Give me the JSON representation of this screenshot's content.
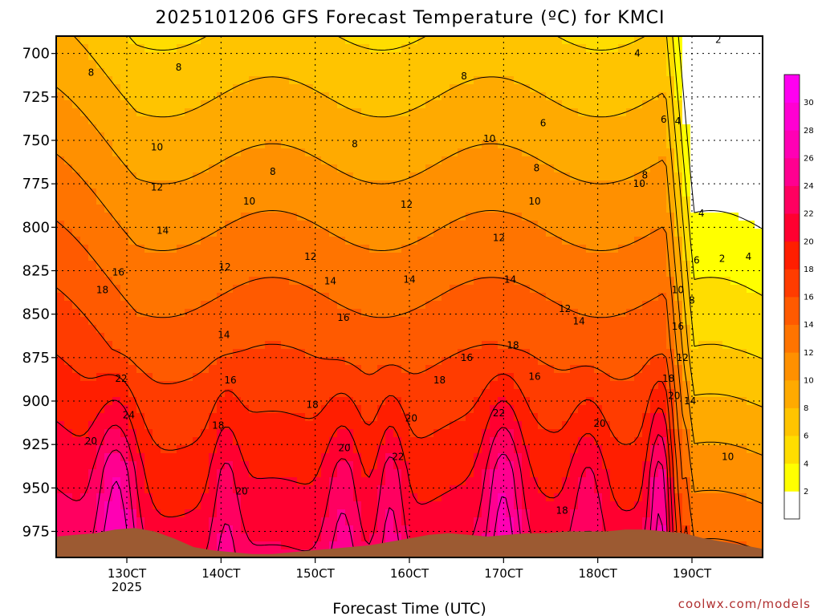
{
  "chart_data": {
    "type": "heatmap",
    "title": "2025101206 GFS Forecast Temperature (ºC) for KMCI",
    "xlabel": "Forecast Time (UTC)",
    "ylabel": "",
    "credit": "coolwx.com/models",
    "x_start_day": 12.25,
    "x_end_day": 19.75,
    "xlim_day": [
      12.25,
      19.75
    ],
    "x_ticks": [
      {
        "day": 13,
        "label": "130CT"
      },
      {
        "day": 14,
        "label": "140CT"
      },
      {
        "day": 15,
        "label": "150CT"
      },
      {
        "day": 16,
        "label": "160CT"
      },
      {
        "day": 17,
        "label": "170CT"
      },
      {
        "day": 18,
        "label": "180CT"
      },
      {
        "day": 19,
        "label": "190CT"
      }
    ],
    "year_label": "2025",
    "ylim_hpa": [
      990,
      690
    ],
    "y_ticks": [
      700,
      725,
      750,
      775,
      800,
      825,
      850,
      875,
      900,
      925,
      950,
      975
    ],
    "colorbar": {
      "levels": [
        0,
        2,
        4,
        6,
        8,
        10,
        12,
        14,
        16,
        18,
        20,
        22,
        24,
        26,
        28,
        30,
        32
      ],
      "labels": [
        2,
        4,
        6,
        8,
        10,
        12,
        14,
        16,
        18,
        20,
        22,
        24,
        26,
        28,
        30
      ],
      "colors": [
        "#ffffff",
        "#ffff00",
        "#ffdd00",
        "#ffc400",
        "#ffaa00",
        "#ff9000",
        "#ff7400",
        "#ff5a00",
        "#ff3c00",
        "#ff1e00",
        "#ff0030",
        "#ff0060",
        "#ff0090",
        "#ff00b4",
        "#ff00d2",
        "#ff00f0"
      ]
    },
    "surface_color": "#9c5a32",
    "surface_hpa": [
      978,
      977,
      976,
      974,
      973,
      975,
      979,
      984,
      986,
      987,
      988,
      988,
      987,
      986,
      985,
      984,
      983,
      981,
      979,
      977,
      976,
      977,
      978,
      977,
      976,
      976,
      975,
      975,
      975,
      974,
      974,
      975,
      976,
      979,
      981,
      983,
      985
    ],
    "contour_labels": [
      {
        "day": 12.62,
        "hpa": 711,
        "value": "8"
      },
      {
        "day": 13.55,
        "hpa": 708,
        "value": "8"
      },
      {
        "day": 16.58,
        "hpa": 713,
        "value": "8"
      },
      {
        "day": 18.42,
        "hpa": 700,
        "value": "4"
      },
      {
        "day": 19.28,
        "hpa": 692,
        "value": "2"
      },
      {
        "day": 17.42,
        "hpa": 740,
        "value": "6"
      },
      {
        "day": 18.7,
        "hpa": 738,
        "value": "6"
      },
      {
        "day": 18.85,
        "hpa": 739,
        "value": "4"
      },
      {
        "day": 13.32,
        "hpa": 754,
        "value": "10"
      },
      {
        "day": 15.42,
        "hpa": 752,
        "value": "8"
      },
      {
        "day": 16.85,
        "hpa": 749,
        "value": "10"
      },
      {
        "day": 14.55,
        "hpa": 768,
        "value": "8"
      },
      {
        "day": 17.35,
        "hpa": 766,
        "value": "8"
      },
      {
        "day": 18.44,
        "hpa": 775,
        "value": "10"
      },
      {
        "day": 18.5,
        "hpa": 770,
        "value": "8"
      },
      {
        "day": 13.32,
        "hpa": 777,
        "value": "12"
      },
      {
        "day": 14.3,
        "hpa": 785,
        "value": "10"
      },
      {
        "day": 15.97,
        "hpa": 787,
        "value": "12"
      },
      {
        "day": 17.33,
        "hpa": 785,
        "value": "10"
      },
      {
        "day": 19.1,
        "hpa": 792,
        "value": "4"
      },
      {
        "day": 13.38,
        "hpa": 802,
        "value": "14"
      },
      {
        "day": 16.95,
        "hpa": 806,
        "value": "12"
      },
      {
        "day": 14.95,
        "hpa": 817,
        "value": "12"
      },
      {
        "day": 14.04,
        "hpa": 823,
        "value": "12"
      },
      {
        "day": 19.32,
        "hpa": 818,
        "value": "2"
      },
      {
        "day": 19.6,
        "hpa": 817,
        "value": "4"
      },
      {
        "day": 19.05,
        "hpa": 819,
        "value": "6"
      },
      {
        "day": 12.91,
        "hpa": 826,
        "value": "16"
      },
      {
        "day": 15.16,
        "hpa": 831,
        "value": "14"
      },
      {
        "day": 16.0,
        "hpa": 830,
        "value": "14"
      },
      {
        "day": 17.07,
        "hpa": 830,
        "value": "14"
      },
      {
        "day": 12.74,
        "hpa": 836,
        "value": "18"
      },
      {
        "day": 18.85,
        "hpa": 836,
        "value": "10"
      },
      {
        "day": 19.0,
        "hpa": 842,
        "value": "8"
      },
      {
        "day": 15.3,
        "hpa": 852,
        "value": "16"
      },
      {
        "day": 17.65,
        "hpa": 847,
        "value": "12"
      },
      {
        "day": 17.8,
        "hpa": 854,
        "value": "14"
      },
      {
        "day": 14.03,
        "hpa": 862,
        "value": "14"
      },
      {
        "day": 18.85,
        "hpa": 857,
        "value": "16"
      },
      {
        "day": 17.1,
        "hpa": 868,
        "value": "18"
      },
      {
        "day": 16.61,
        "hpa": 875,
        "value": "16"
      },
      {
        "day": 18.9,
        "hpa": 875,
        "value": "12"
      },
      {
        "day": 12.94,
        "hpa": 887,
        "value": "22"
      },
      {
        "day": 14.1,
        "hpa": 888,
        "value": "16"
      },
      {
        "day": 16.32,
        "hpa": 888,
        "value": "18"
      },
      {
        "day": 17.33,
        "hpa": 886,
        "value": "16"
      },
      {
        "day": 18.75,
        "hpa": 887,
        "value": "18"
      },
      {
        "day": 18.81,
        "hpa": 897,
        "value": "20"
      },
      {
        "day": 18.98,
        "hpa": 900,
        "value": "14"
      },
      {
        "day": 14.97,
        "hpa": 902,
        "value": "18"
      },
      {
        "day": 13.02,
        "hpa": 908,
        "value": "24"
      },
      {
        "day": 16.02,
        "hpa": 910,
        "value": "20"
      },
      {
        "day": 16.95,
        "hpa": 907,
        "value": "22"
      },
      {
        "day": 13.97,
        "hpa": 914,
        "value": "18"
      },
      {
        "day": 18.02,
        "hpa": 913,
        "value": "20"
      },
      {
        "day": 12.62,
        "hpa": 923,
        "value": "20"
      },
      {
        "day": 15.31,
        "hpa": 927,
        "value": "20"
      },
      {
        "day": 15.88,
        "hpa": 932,
        "value": "22"
      },
      {
        "day": 19.38,
        "hpa": 932,
        "value": "10"
      },
      {
        "day": 14.22,
        "hpa": 952,
        "value": "20"
      },
      {
        "day": 17.62,
        "hpa": 963,
        "value": "18"
      }
    ]
  }
}
